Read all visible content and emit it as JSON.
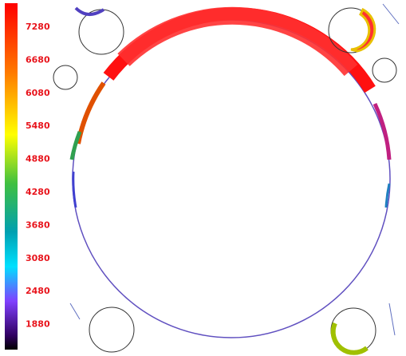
{
  "colorbar": {
    "ticks": [
      "7280",
      "6680",
      "6080",
      "5480",
      "4880",
      "4280",
      "3680",
      "3080",
      "2480",
      "1880"
    ]
  }
}
